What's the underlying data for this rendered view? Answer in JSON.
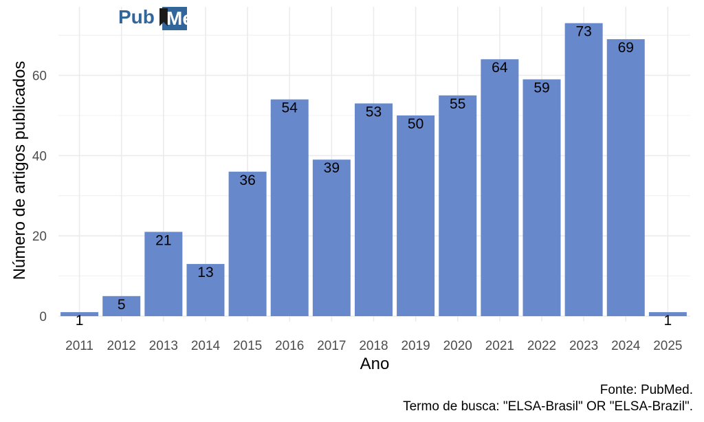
{
  "logo": {
    "text_left": "Pub",
    "text_right": "Med",
    "color": "#326599",
    "accent": "#ffffff"
  },
  "caption": {
    "line1": "Fonte: PubMed.",
    "line2": "Termo de busca: \"ELSA-Brasil\" OR \"ELSA-Brazil\"."
  },
  "chart_data": {
    "type": "bar",
    "categories": [
      "2011",
      "2012",
      "2013",
      "2014",
      "2015",
      "2016",
      "2017",
      "2018",
      "2019",
      "2020",
      "2021",
      "2022",
      "2023",
      "2024",
      "2025"
    ],
    "values": [
      1,
      5,
      21,
      13,
      36,
      54,
      39,
      53,
      50,
      55,
      64,
      59,
      73,
      69,
      1
    ],
    "xlabel": "Ano",
    "ylabel": "Número de artigos publicados",
    "ylim": [
      0,
      77
    ],
    "yticks": [
      0,
      20,
      40,
      60
    ],
    "grid": true,
    "bar_color": "#6788cb",
    "grid_color": "#ebebeb"
  }
}
